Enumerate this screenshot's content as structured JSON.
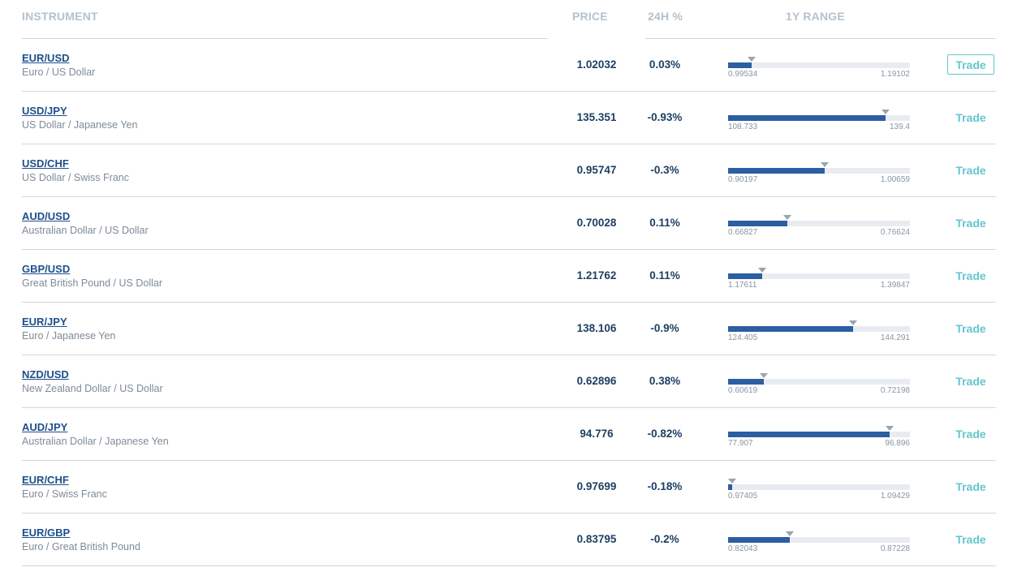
{
  "header": {
    "instrument": "INSTRUMENT",
    "price": "PRICE",
    "change": "24H %",
    "range": "1Y RANGE"
  },
  "rows": [
    {
      "symbol": "EUR/USD",
      "name": "Euro / US Dollar",
      "price": "1.02032",
      "change": "0.03%",
      "range_min": "0.99534",
      "range_max": "1.19102",
      "range_position": 0.128,
      "trade": "Trade"
    },
    {
      "symbol": "USD/JPY",
      "name": "US Dollar / Japanese Yen",
      "price": "135.351",
      "change": "-0.93%",
      "range_min": "108.733",
      "range_max": "139.4",
      "range_position": 0.868,
      "trade": "Trade"
    },
    {
      "symbol": "USD/CHF",
      "name": "US Dollar / Swiss Franc",
      "price": "0.95747",
      "change": "-0.3%",
      "range_min": "0.90197",
      "range_max": "1.00659",
      "range_position": 0.53,
      "trade": "Trade"
    },
    {
      "symbol": "AUD/USD",
      "name": "Australian Dollar / US Dollar",
      "price": "0.70028",
      "change": "0.11%",
      "range_min": "0.66827",
      "range_max": "0.76624",
      "range_position": 0.327,
      "trade": "Trade"
    },
    {
      "symbol": "GBP/USD",
      "name": "Great British Pound / US Dollar",
      "price": "1.21762",
      "change": "0.11%",
      "range_min": "1.17611",
      "range_max": "1.39847",
      "range_position": 0.187,
      "trade": "Trade"
    },
    {
      "symbol": "EUR/JPY",
      "name": "Euro / Japanese Yen",
      "price": "138.106",
      "change": "-0.9%",
      "range_min": "124.405",
      "range_max": "144.291",
      "range_position": 0.689,
      "trade": "Trade"
    },
    {
      "symbol": "NZD/USD",
      "name": "New Zealand Dollar / US Dollar",
      "price": "0.62896",
      "change": "0.38%",
      "range_min": "0.60619",
      "range_max": "0.72198",
      "range_position": 0.197,
      "trade": "Trade"
    },
    {
      "symbol": "AUD/JPY",
      "name": "Australian Dollar / Japanese Yen",
      "price": "94.776",
      "change": "-0.82%",
      "range_min": "77.907",
      "range_max": "96.896",
      "range_position": 0.888,
      "trade": "Trade"
    },
    {
      "symbol": "EUR/CHF",
      "name": "Euro / Swiss Franc",
      "price": "0.97699",
      "change": "-0.18%",
      "range_min": "0.97405",
      "range_max": "1.09429",
      "range_position": 0.024,
      "trade": "Trade"
    },
    {
      "symbol": "EUR/GBP",
      "name": "Euro / Great British Pound",
      "price": "0.83795",
      "change": "-0.2%",
      "range_min": "0.82043",
      "range_max": "0.87228",
      "range_position": 0.338,
      "trade": "Trade"
    }
  ],
  "colors": {
    "accent": "#63c6cd",
    "bar_fill": "#2c5ea2",
    "bar_track": "#e8ecf1",
    "link": "#1d4f8a"
  },
  "active_trade_row": 0
}
